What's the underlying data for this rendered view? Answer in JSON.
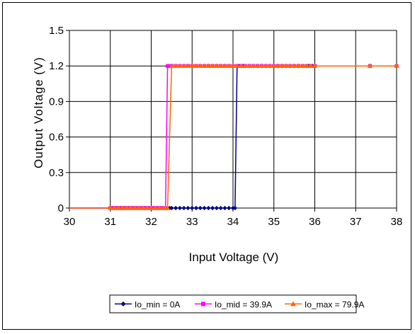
{
  "chart_data": {
    "type": "line",
    "title": "",
    "xlabel": "Input Voltage (V)",
    "ylabel": "Output Voltage (V)",
    "xlim": [
      30,
      38
    ],
    "ylim": [
      0,
      1.5
    ],
    "xticks": [
      "30",
      "31",
      "32",
      "33",
      "34",
      "35",
      "36",
      "37",
      "38"
    ],
    "yticks": [
      "0",
      "0.3",
      "0.6",
      "0.9",
      "1.2",
      "1.5"
    ],
    "grid": true,
    "legend_position": "bottom",
    "series": [
      {
        "name": "Io_min = 0A",
        "color": "#000080",
        "marker": "diamond",
        "x": [
          30,
          31,
          31.05,
          31.1,
          31.15,
          31.2,
          31.25,
          31.3,
          31.35,
          31.4,
          31.45,
          31.5,
          31.55,
          31.6,
          31.65,
          31.7,
          31.75,
          31.8,
          31.85,
          31.9,
          31.95,
          32,
          32.05,
          32.1,
          32.15,
          32.2,
          32.25,
          32.3,
          32.35,
          32.4,
          32.45,
          32.5,
          32.6,
          32.7,
          32.8,
          32.9,
          33,
          33.1,
          33.2,
          33.3,
          33.4,
          33.5,
          33.6,
          33.7,
          33.8,
          33.9,
          34,
          34.05,
          34.1,
          34.15,
          34.2,
          34.25,
          34.3,
          34.4,
          34.5,
          34.6,
          34.7,
          34.8,
          34.9,
          35,
          35.1,
          35.2,
          35.3,
          35.4,
          35.5,
          35.6,
          35.7,
          35.8,
          35.85,
          35.9,
          35.95,
          36,
          37.35,
          38
        ],
        "y": [
          0,
          0,
          0,
          0,
          0,
          0,
          0,
          0,
          0,
          0,
          0,
          0,
          0,
          0,
          0,
          0,
          0,
          0,
          0,
          0,
          0,
          0,
          0,
          0,
          0,
          0,
          0,
          0,
          0,
          0,
          0,
          0,
          0,
          0,
          0,
          0,
          0,
          0,
          0,
          0,
          0,
          0,
          0,
          0,
          0,
          0,
          0,
          0,
          1.2,
          1.2,
          1.2,
          1.2,
          1.2,
          1.2,
          1.2,
          1.2,
          1.2,
          1.2,
          1.2,
          1.2,
          1.2,
          1.2,
          1.2,
          1.2,
          1.2,
          1.2,
          1.2,
          1.2,
          1.2,
          1.2,
          1.2,
          1.2,
          1.2,
          1.2
        ]
      },
      {
        "name": "Io_mid = 39.9A",
        "color": "#ff00ff",
        "marker": "square",
        "x": [
          30,
          31,
          31.05,
          31.1,
          31.15,
          31.2,
          31.25,
          31.3,
          31.35,
          31.4,
          31.45,
          31.5,
          31.55,
          31.6,
          31.65,
          31.7,
          31.75,
          31.8,
          31.85,
          31.9,
          31.95,
          32,
          32.05,
          32.1,
          32.15,
          32.2,
          32.25,
          32.3,
          32.35,
          32.4,
          32.45,
          32.5,
          32.6,
          32.7,
          32.8,
          32.9,
          33,
          33.1,
          33.2,
          33.3,
          33.4,
          33.5,
          33.6,
          33.7,
          33.8,
          33.9,
          34,
          34.1,
          34.2,
          34.3,
          34.4,
          34.5,
          34.6,
          34.7,
          34.8,
          34.9,
          35,
          35.1,
          35.2,
          35.3,
          35.4,
          35.5,
          35.6,
          35.7,
          35.8,
          35.9,
          36,
          37.35,
          38
        ],
        "y": [
          0,
          0,
          0,
          0,
          0,
          0,
          0,
          0,
          0,
          0,
          0,
          0,
          0,
          0,
          0,
          0,
          0,
          0,
          0,
          0,
          0,
          0,
          0,
          0,
          0,
          0,
          0,
          0,
          0,
          1.2,
          1.2,
          1.2,
          1.2,
          1.2,
          1.2,
          1.2,
          1.2,
          1.2,
          1.2,
          1.2,
          1.2,
          1.2,
          1.2,
          1.2,
          1.2,
          1.2,
          1.2,
          1.2,
          1.2,
          1.2,
          1.2,
          1.2,
          1.2,
          1.2,
          1.2,
          1.2,
          1.2,
          1.2,
          1.2,
          1.2,
          1.2,
          1.2,
          1.2,
          1.2,
          1.2,
          1.2,
          1.2,
          1.2,
          1.2
        ]
      },
      {
        "name": "Io_max = 79.9A",
        "color": "#ff6600",
        "marker": "triangle",
        "x": [
          30,
          31,
          31.1,
          31.2,
          31.3,
          31.4,
          31.5,
          31.6,
          31.7,
          31.8,
          31.9,
          32,
          32.1,
          32.2,
          32.3,
          32.35,
          32.4,
          32.5,
          32.6,
          32.7,
          32.8,
          32.9,
          33,
          33.1,
          33.2,
          33.3,
          33.4,
          33.5,
          33.6,
          33.7,
          33.8,
          33.9,
          34,
          34.1,
          34.2,
          34.3,
          34.4,
          34.5,
          34.6,
          34.7,
          34.8,
          34.9,
          35,
          35.1,
          35.2,
          35.3,
          35.4,
          35.5,
          35.6,
          35.7,
          35.8,
          35.9,
          36,
          37.35,
          38
        ],
        "y": [
          0,
          0,
          0,
          0,
          0,
          0,
          0,
          0,
          0,
          0,
          0,
          0,
          0,
          0,
          0,
          0,
          0,
          1.2,
          1.2,
          1.2,
          1.2,
          1.2,
          1.2,
          1.2,
          1.2,
          1.2,
          1.2,
          1.2,
          1.2,
          1.2,
          1.2,
          1.2,
          1.2,
          1.2,
          1.2,
          1.2,
          1.2,
          1.2,
          1.2,
          1.2,
          1.2,
          1.2,
          1.2,
          1.2,
          1.2,
          1.2,
          1.2,
          1.2,
          1.2,
          1.2,
          1.2,
          1.2,
          1.2,
          1.2,
          1.2
        ]
      }
    ]
  }
}
